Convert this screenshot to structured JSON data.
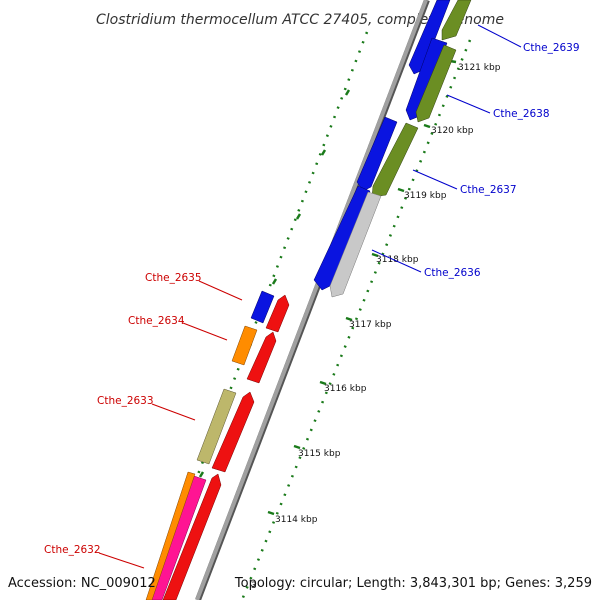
{
  "title": "Clostridium thermocellum ATCC 27405, complete genome",
  "footer": {
    "accession": "Accession: NC_009012",
    "topology": "Topology: circular; Length: 3,843,301 bp; Genes: 3,259",
    "partial_tick_label": "3"
  },
  "colors": {
    "background": "#ffffff",
    "backbone": "#9a9a9a",
    "backbone_shadow": "#555555",
    "ruler": "#1a7a1a",
    "forward_label": "#0000cc",
    "reverse_label": "#cc0000",
    "blue_gene": "#0a14e0",
    "olive_gene": "#6b8e23",
    "grey_gene": "#c8c8c8",
    "red_gene": "#ee1111",
    "orange_gene": "#ff8c00",
    "khaki_gene": "#bdb76b",
    "pink_gene": "#ff1493"
  },
  "ruler_ticks": [
    "3121 kbp",
    "3120 kbp",
    "3119 kbp",
    "3118 kbp",
    "3117 kbp",
    "3116 kbp",
    "3115 kbp",
    "3114 kbp"
  ],
  "gene_labels": {
    "forward": [
      "Cthe_2639",
      "Cthe_2638",
      "Cthe_2637",
      "Cthe_2636"
    ],
    "reverse": [
      "Cthe_2635",
      "Cthe_2634",
      "Cthe_2633",
      "Cthe_2632"
    ]
  }
}
